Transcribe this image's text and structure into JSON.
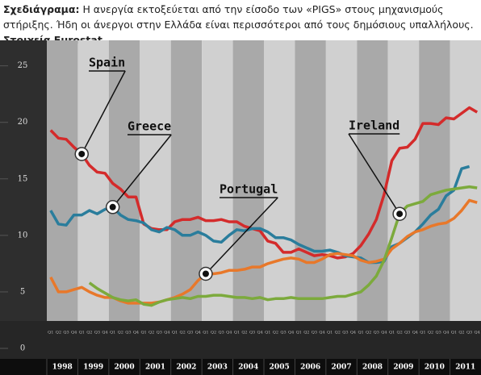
{
  "chart_data": {
    "type": "line",
    "title": "Σχεδιάγραμα:",
    "subtitle": "Η ανεργία εκτοξεύεται από την είσοδο των «PIGS» στους μηχανισμούς στήριξης. Ήδη οι άνεργοι στην Ελλάδα είναι περισσότεροι από τους δημόσιους υπαλλήλους.",
    "source": "Στοιχεία Eurostat",
    "years": [
      "1998",
      "1999",
      "2000",
      "2001",
      "2002",
      "2003",
      "2004",
      "2005",
      "2006",
      "2007",
      "2008",
      "2009",
      "2010",
      "2011"
    ],
    "quarters": [
      "Q1",
      "Q2",
      "Q3",
      "Q4"
    ],
    "ylim": [
      0,
      26.4
    ],
    "yticks": [
      0,
      5,
      10,
      15,
      20,
      25
    ],
    "series": [
      {
        "name": "Spain",
        "color": "#d42b2b",
        "values": [
          19.3,
          18.6,
          18.5,
          17.8,
          17.2,
          16.2,
          15.6,
          15.5,
          14.6,
          14.1,
          13.4,
          13.4,
          11.0,
          10.6,
          10.5,
          10.5,
          11.2,
          11.4,
          11.4,
          11.6,
          11.3,
          11.3,
          11.4,
          11.2,
          11.2,
          10.8,
          10.6,
          10.4,
          9.5,
          9.3,
          8.5,
          8.5,
          8.8,
          8.5,
          8.2,
          8.3,
          8.2,
          8.0,
          8.1,
          8.4,
          9.1,
          10.1,
          11.4,
          13.6,
          16.6,
          17.7,
          17.8,
          18.5,
          19.9,
          19.9,
          19.8,
          20.4,
          20.3,
          20.8,
          21.3,
          20.9
        ]
      },
      {
        "name": "Greece",
        "color": "#2a7d9c",
        "values": [
          12.2,
          11.0,
          10.9,
          11.8,
          11.8,
          12.2,
          11.9,
          12.3,
          12.5,
          11.8,
          11.4,
          11.3,
          11.1,
          10.5,
          10.3,
          10.7,
          10.5,
          10.0,
          10.0,
          10.3,
          10.0,
          9.5,
          9.4,
          10.0,
          10.5,
          10.4,
          10.6,
          10.6,
          10.3,
          9.8,
          9.8,
          9.6,
          9.2,
          8.9,
          8.6,
          8.6,
          8.7,
          8.5,
          8.2,
          8.1,
          8.0,
          7.6,
          7.6,
          7.7,
          9.0,
          9.3,
          9.8,
          10.3,
          11.0,
          11.8,
          12.3,
          13.5,
          14.0,
          15.9,
          16.1,
          null
        ]
      },
      {
        "name": "Portugal",
        "color": "#e8782a",
        "values": [
          6.3,
          5.0,
          5.0,
          5.2,
          5.4,
          5.0,
          4.7,
          4.5,
          4.5,
          4.2,
          4.0,
          4.0,
          4.0,
          4.0,
          4.1,
          4.3,
          4.5,
          4.8,
          5.2,
          6.0,
          6.6,
          6.6,
          6.7,
          6.9,
          6.9,
          7.0,
          7.2,
          7.2,
          7.5,
          7.7,
          7.9,
          8.0,
          7.9,
          7.6,
          7.6,
          7.9,
          8.3,
          8.4,
          8.3,
          8.2,
          7.8,
          7.6,
          7.7,
          7.9,
          8.8,
          9.3,
          9.9,
          10.3,
          10.5,
          10.8,
          11.0,
          11.1,
          11.5,
          12.2,
          13.1,
          12.9
        ]
      },
      {
        "name": "Ireland",
        "color": "#7caa3c",
        "values": [
          null,
          null,
          null,
          null,
          null,
          5.8,
          5.3,
          4.9,
          4.5,
          4.3,
          4.2,
          4.3,
          3.9,
          3.8,
          4.1,
          4.3,
          4.4,
          4.5,
          4.4,
          4.6,
          4.6,
          4.7,
          4.7,
          4.6,
          4.5,
          4.5,
          4.4,
          4.5,
          4.3,
          4.4,
          4.4,
          4.5,
          4.4,
          4.4,
          4.4,
          4.4,
          4.5,
          4.6,
          4.6,
          4.8,
          5.0,
          5.6,
          6.4,
          7.8,
          9.8,
          11.9,
          12.6,
          12.8,
          13.0,
          13.6,
          13.8,
          14.0,
          14.1,
          14.2,
          14.3,
          14.2
        ]
      }
    ]
  }
}
